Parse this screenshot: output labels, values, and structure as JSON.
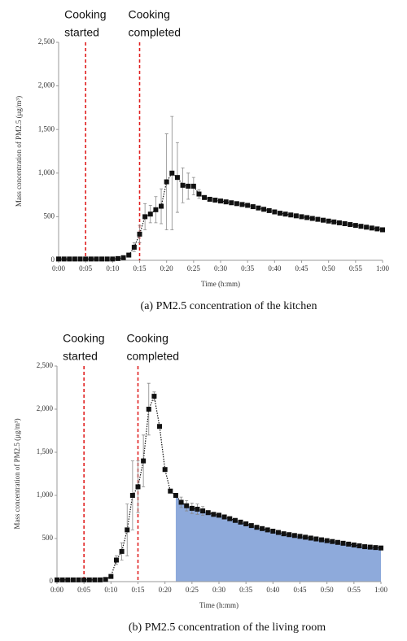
{
  "chart_data": [
    {
      "type": "line",
      "caption": "(a) PM2.5 concentration of the kitchen",
      "x_label": "Time (h:mm)",
      "y_label": "Mass concentration of PM2.5 (μg/m³)",
      "xlim": [
        0,
        60
      ],
      "ylim": [
        0,
        2500
      ],
      "xticks": [
        {
          "value": 0,
          "label": "0:00"
        },
        {
          "value": 5,
          "label": "0:05"
        },
        {
          "value": 10,
          "label": "0:10"
        },
        {
          "value": 15,
          "label": "0:15"
        },
        {
          "value": 20,
          "label": "0:20"
        },
        {
          "value": 25,
          "label": "0:25"
        },
        {
          "value": 30,
          "label": "0:30"
        },
        {
          "value": 35,
          "label": "0:35"
        },
        {
          "value": 40,
          "label": "0:40"
        },
        {
          "value": 45,
          "label": "0:45"
        },
        {
          "value": 50,
          "label": "0:50"
        },
        {
          "value": 55,
          "label": "0:55"
        },
        {
          "value": 60,
          "label": "1:00"
        }
      ],
      "yticks": [
        0,
        500,
        {
          "value": 1000,
          "label": "1,000"
        },
        {
          "value": 1500,
          "label": "1,500"
        },
        {
          "value": 2000,
          "label": "2,000"
        },
        {
          "value": 2500,
          "label": "2,500"
        }
      ],
      "grid": false,
      "annotations": [
        {
          "x": 5,
          "lines": [
            "Cooking",
            "started"
          ],
          "color": "#e02020"
        },
        {
          "x": 15,
          "lines": [
            "Cooking",
            "completed"
          ],
          "color": "#e02020"
        }
      ],
      "x": [
        0,
        1,
        2,
        3,
        4,
        5,
        6,
        7,
        8,
        9,
        10,
        11,
        12,
        13,
        14,
        15,
        16,
        17,
        18,
        19,
        20,
        21,
        22,
        23,
        24,
        25,
        26,
        27,
        28,
        29,
        30,
        31,
        32,
        33,
        34,
        35,
        36,
        37,
        38,
        39,
        40,
        41,
        42,
        43,
        44,
        45,
        46,
        47,
        48,
        49,
        50,
        51,
        52,
        53,
        54,
        55,
        56,
        57,
        58,
        59,
        60
      ],
      "series": [
        {
          "color": "#111111",
          "values": [
            15,
            15,
            15,
            15,
            15,
            15,
            15,
            15,
            15,
            15,
            15,
            20,
            30,
            60,
            150,
            300,
            500,
            530,
            580,
            620,
            900,
            1000,
            950,
            860,
            850,
            850,
            760,
            720,
            700,
            690,
            680,
            670,
            660,
            650,
            640,
            630,
            615,
            600,
            585,
            570,
            555,
            540,
            530,
            520,
            510,
            500,
            490,
            480,
            470,
            460,
            450,
            440,
            430,
            420,
            410,
            400,
            390,
            380,
            370,
            360,
            350
          ],
          "errors": [
            null,
            null,
            null,
            null,
            null,
            null,
            null,
            null,
            null,
            null,
            null,
            null,
            null,
            null,
            50,
            100,
            150,
            100,
            150,
            200,
            550,
            650,
            400,
            200,
            150,
            100,
            50,
            null,
            null,
            null,
            null,
            null,
            null,
            null,
            null,
            null,
            null,
            null,
            null,
            null,
            null,
            null,
            null,
            null,
            null,
            null,
            null,
            null,
            null,
            null,
            null,
            null,
            null,
            null,
            null,
            null,
            null,
            null,
            null,
            null,
            null
          ]
        }
      ]
    },
    {
      "type": "line",
      "caption": "(b) PM2.5 concentration of the living room",
      "x_label": "Time (h:mm)",
      "y_label": "Mass concentration of PM2.5 (μg/m³)",
      "xlim": [
        0,
        60
      ],
      "ylim": [
        0,
        2500
      ],
      "xticks": [
        {
          "value": 0,
          "label": "0:00"
        },
        {
          "value": 5,
          "label": "0:05"
        },
        {
          "value": 10,
          "label": "0:10"
        },
        {
          "value": 15,
          "label": "0:15"
        },
        {
          "value": 20,
          "label": "0:20"
        },
        {
          "value": 25,
          "label": "0:25"
        },
        {
          "value": 30,
          "label": "0:30"
        },
        {
          "value": 35,
          "label": "0:35"
        },
        {
          "value": 40,
          "label": "0:40"
        },
        {
          "value": 45,
          "label": "0:45"
        },
        {
          "value": 50,
          "label": "0:50"
        },
        {
          "value": 55,
          "label": "0:55"
        },
        {
          "value": 60,
          "label": "1:00"
        }
      ],
      "yticks": [
        0,
        500,
        {
          "value": 1000,
          "label": "1,000"
        },
        {
          "value": 1500,
          "label": "1,500"
        },
        {
          "value": 2000,
          "label": "2,000"
        },
        {
          "value": 2500,
          "label": "2,500"
        }
      ],
      "grid": false,
      "annotations": [
        {
          "x": 5,
          "lines": [
            "Cooking",
            "started"
          ],
          "color": "#e02020"
        },
        {
          "x": 15,
          "lines": [
            "Cooking",
            "completed"
          ],
          "color": "#e02020"
        }
      ],
      "shaded_region": {
        "x": [
          22,
          60
        ],
        "color": "#8eaadb"
      },
      "x": [
        0,
        1,
        2,
        3,
        4,
        5,
        6,
        7,
        8,
        9,
        10,
        11,
        12,
        13,
        14,
        15,
        16,
        17,
        18,
        19,
        20,
        21,
        22,
        23,
        24,
        25,
        26,
        27,
        28,
        29,
        30,
        31,
        32,
        33,
        34,
        35,
        36,
        37,
        38,
        39,
        40,
        41,
        42,
        43,
        44,
        45,
        46,
        47,
        48,
        49,
        50,
        51,
        52,
        53,
        54,
        55,
        56,
        57,
        58,
        59,
        60
      ],
      "series": [
        {
          "color": "#111111",
          "values": [
            20,
            20,
            20,
            20,
            20,
            20,
            20,
            20,
            20,
            25,
            60,
            250,
            350,
            600,
            1000,
            1100,
            1400,
            2000,
            2150,
            1800,
            1300,
            1050,
            1000,
            920,
            880,
            850,
            840,
            820,
            800,
            780,
            770,
            750,
            730,
            710,
            690,
            670,
            650,
            630,
            615,
            600,
            585,
            570,
            555,
            545,
            535,
            525,
            515,
            505,
            495,
            485,
            475,
            465,
            455,
            445,
            435,
            425,
            415,
            405,
            400,
            395,
            390
          ],
          "errors": [
            null,
            null,
            null,
            null,
            null,
            null,
            null,
            null,
            null,
            null,
            null,
            50,
            100,
            300,
            400,
            300,
            300,
            300,
            50,
            null,
            null,
            null,
            null,
            60,
            60,
            60,
            60,
            50,
            null,
            null,
            null,
            null,
            null,
            null,
            null,
            null,
            null,
            null,
            null,
            null,
            null,
            null,
            null,
            null,
            null,
            null,
            null,
            null,
            null,
            null,
            null,
            null,
            null,
            null,
            null,
            null,
            null,
            null,
            null,
            null,
            null
          ]
        }
      ]
    }
  ]
}
